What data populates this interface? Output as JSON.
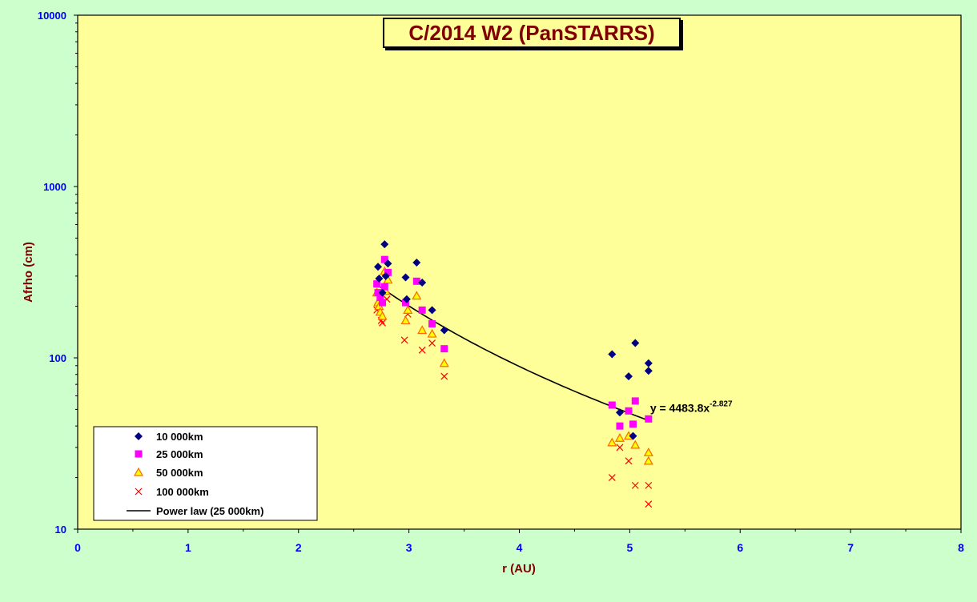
{
  "chart_data": {
    "type": "scatter",
    "title": "C/2014 W2 (PanSTARRS)",
    "xlabel": "r (AU)",
    "ylabel": "Afrho (cm)",
    "xlim": [
      0,
      8
    ],
    "ylim": [
      10,
      10000
    ],
    "yscale": "log",
    "x_ticks": [
      "0",
      "1",
      "2",
      "3",
      "4",
      "5",
      "6",
      "7",
      "8"
    ],
    "y_ticks": [
      "10",
      "100",
      "1000",
      "10000"
    ],
    "y_tick_values": [
      10,
      100,
      1000,
      10000
    ],
    "legend_position": "bottom-left",
    "grid": false,
    "colors": {
      "plot_bg": "#ffff99",
      "page_bg": "#ccffcc",
      "title": "#800000",
      "ticks": "#0000ff"
    },
    "series": [
      {
        "name": "10 000km",
        "marker": "diamond",
        "color": "#000080",
        "points": [
          [
            2.72,
            340
          ],
          [
            2.73,
            290
          ],
          [
            2.76,
            240
          ],
          [
            2.78,
            460
          ],
          [
            2.79,
            300
          ],
          [
            2.81,
            355
          ],
          [
            2.97,
            295
          ],
          [
            2.98,
            220
          ],
          [
            3.07,
            360
          ],
          [
            3.12,
            275
          ],
          [
            3.21,
            190
          ],
          [
            3.32,
            145
          ],
          [
            4.84,
            105
          ],
          [
            4.91,
            48
          ],
          [
            4.99,
            78
          ],
          [
            5.03,
            35
          ],
          [
            5.05,
            122
          ],
          [
            5.17,
            93
          ],
          [
            5.17,
            84
          ]
        ]
      },
      {
        "name": "25 000km",
        "marker": "square",
        "color": "#ff00ff",
        "points": [
          [
            2.71,
            270
          ],
          [
            2.72,
            240
          ],
          [
            2.74,
            225
          ],
          [
            2.76,
            210
          ],
          [
            2.78,
            375
          ],
          [
            2.78,
            260
          ],
          [
            2.81,
            315
          ],
          [
            2.97,
            210
          ],
          [
            3.07,
            280
          ],
          [
            3.12,
            190
          ],
          [
            3.21,
            158
          ],
          [
            3.32,
            113
          ],
          [
            4.84,
            53
          ],
          [
            4.91,
            40
          ],
          [
            4.99,
            49
          ],
          [
            5.03,
            41
          ],
          [
            5.05,
            56
          ],
          [
            5.17,
            44
          ]
        ]
      },
      {
        "name": "50 000km",
        "marker": "triangle",
        "color": "#ff6600",
        "fill": "#ffff00",
        "points": [
          [
            2.71,
            240
          ],
          [
            2.72,
            210
          ],
          [
            2.73,
            200
          ],
          [
            2.74,
            185
          ],
          [
            2.76,
            175
          ],
          [
            2.78,
            320
          ],
          [
            2.79,
            245
          ],
          [
            2.81,
            285
          ],
          [
            2.97,
            165
          ],
          [
            2.99,
            190
          ],
          [
            3.07,
            230
          ],
          [
            3.12,
            145
          ],
          [
            3.21,
            138
          ],
          [
            3.32,
            93
          ],
          [
            4.84,
            32
          ],
          [
            4.91,
            34
          ],
          [
            4.99,
            35
          ],
          [
            5.05,
            31
          ],
          [
            5.17,
            28
          ],
          [
            5.17,
            25
          ]
        ]
      },
      {
        "name": "100 000km",
        "marker": "x",
        "color": "#ff0000",
        "points": [
          [
            2.71,
            190
          ],
          [
            2.72,
            200
          ],
          [
            2.73,
            185
          ],
          [
            2.75,
            165
          ],
          [
            2.76,
            160
          ],
          [
            2.78,
            255
          ],
          [
            2.8,
            220
          ],
          [
            2.96,
            127
          ],
          [
            2.99,
            180
          ],
          [
            3.12,
            111
          ],
          [
            3.21,
            122
          ],
          [
            3.32,
            78
          ],
          [
            4.84,
            20
          ],
          [
            4.91,
            30
          ],
          [
            4.99,
            25
          ],
          [
            5.05,
            18
          ],
          [
            5.17,
            18
          ],
          [
            5.17,
            14
          ]
        ]
      },
      {
        "name": "Power law (25 000km)",
        "type": "line",
        "color": "#000000",
        "fit": {
          "a": 4483.8,
          "b": -2.827
        },
        "x_range": [
          2.72,
          5.17
        ]
      }
    ],
    "annotation": {
      "text": "y = 4483.8x",
      "exponent": "-2.827",
      "x": 5.17,
      "y": 51
    }
  }
}
